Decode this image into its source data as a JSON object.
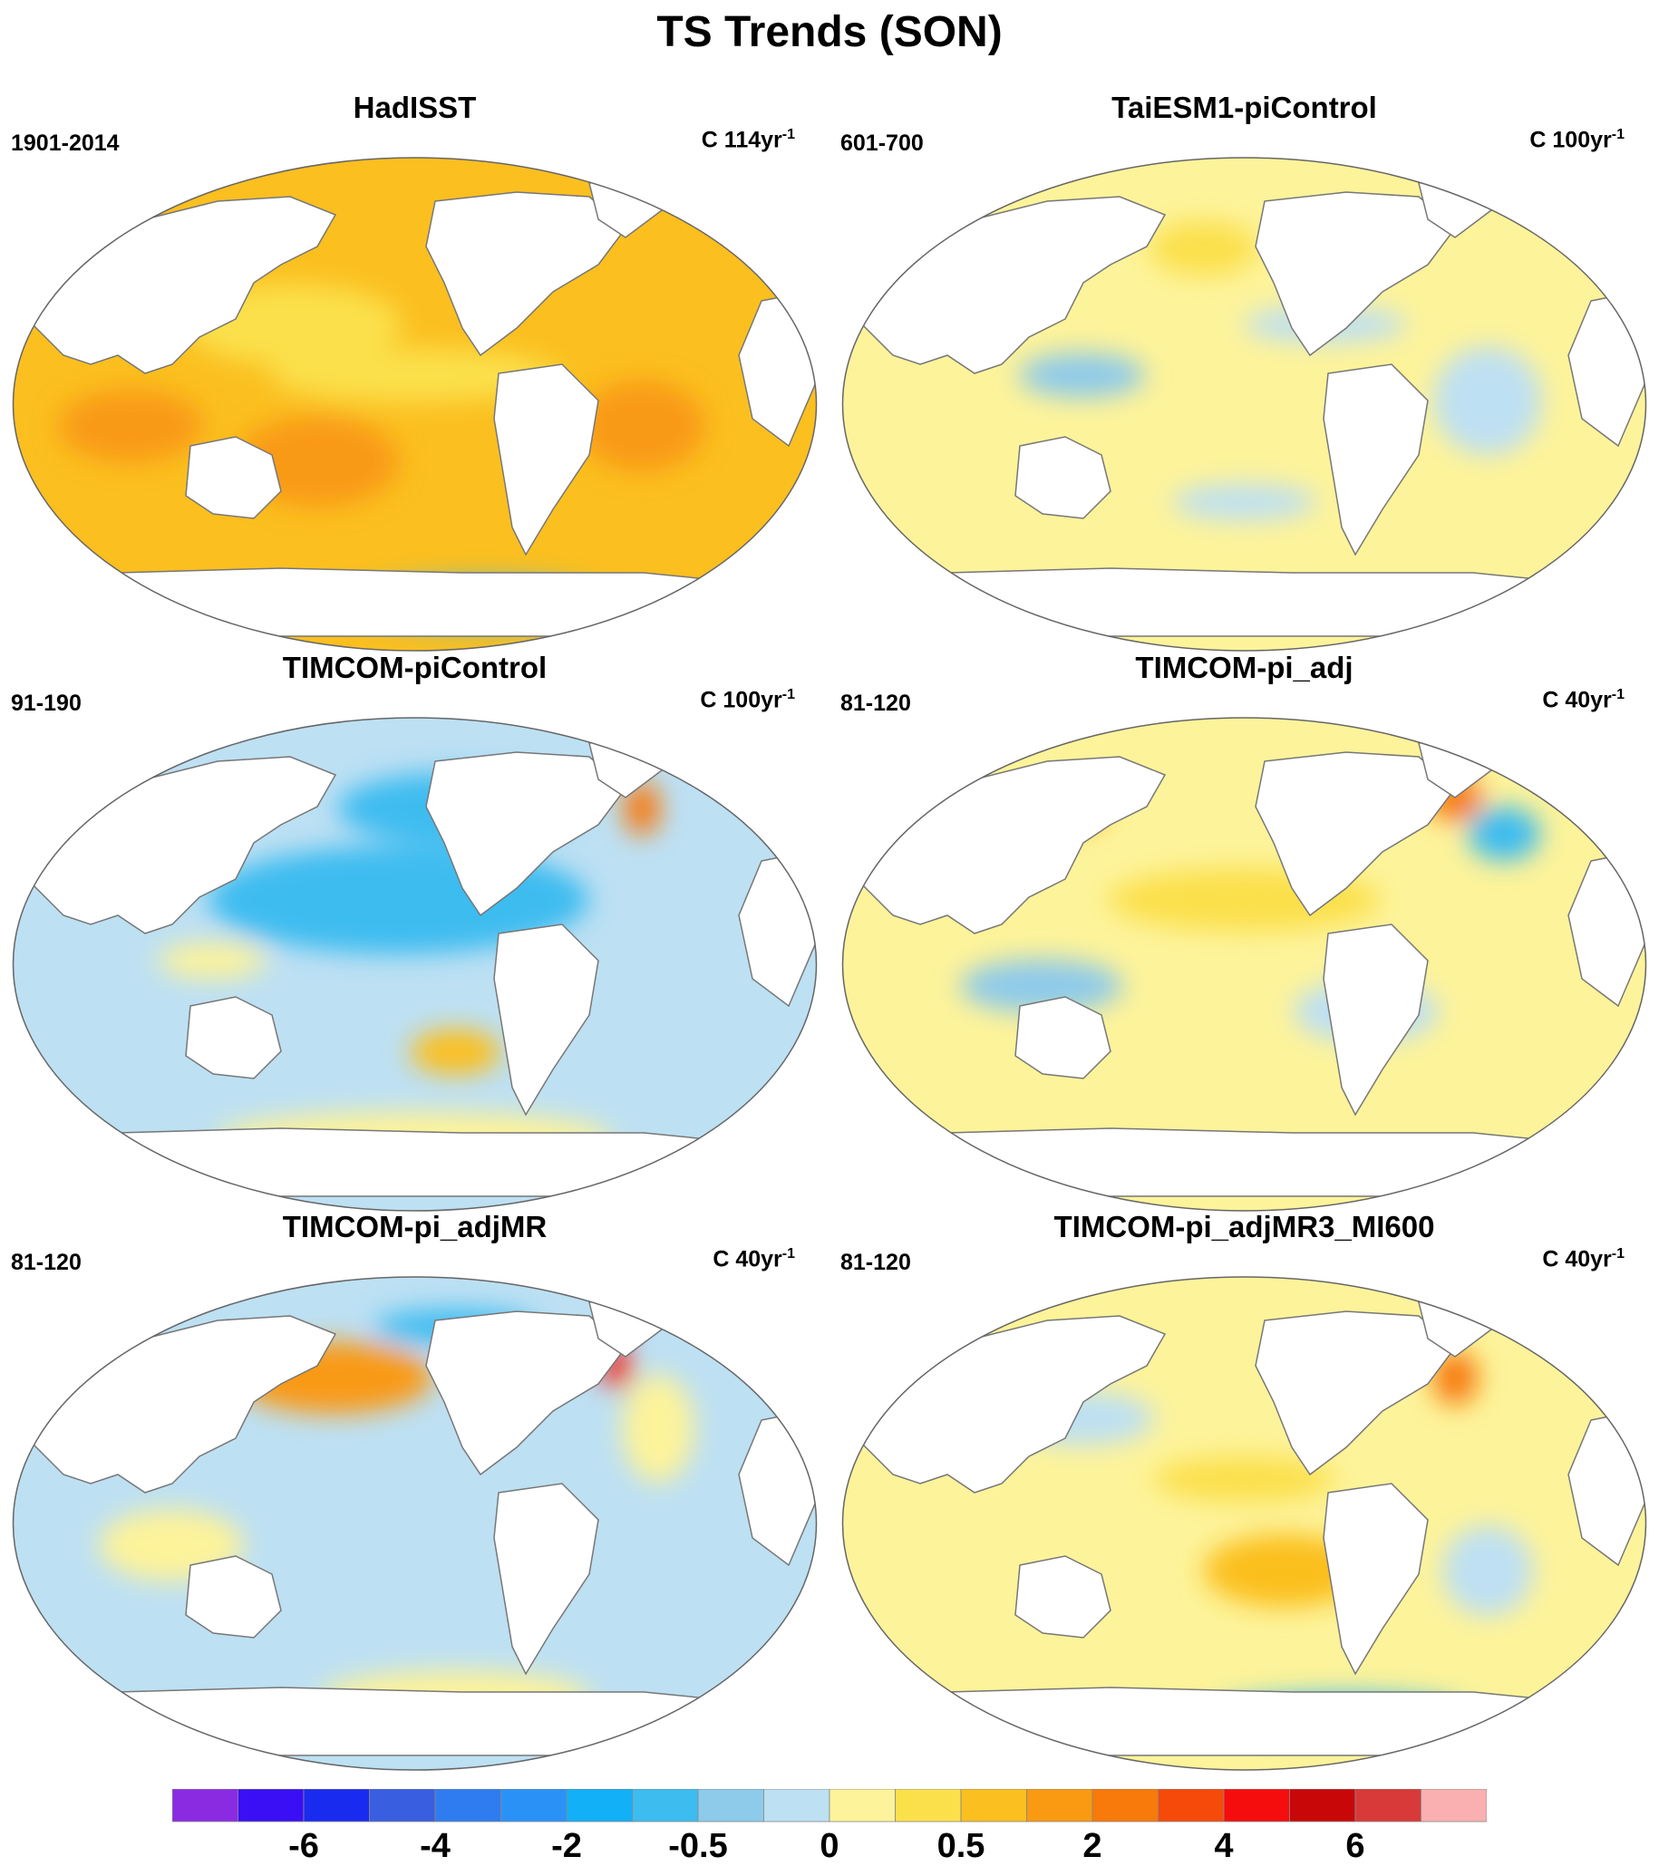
{
  "title": "TS Trends (SON)",
  "panels": [
    {
      "title": "HadISST",
      "period": "1901-2014",
      "units": "C 114yr",
      "units_exp": "-1",
      "pattern": "warm"
    },
    {
      "title": "TaiESM1-piControl",
      "period": "601-700",
      "units": "C 100yr",
      "units_exp": "-1",
      "pattern": "mixed"
    },
    {
      "title": "TIMCOM-piControl",
      "period": "91-190",
      "units": "C 100yr",
      "units_exp": "-1",
      "pattern": "cool"
    },
    {
      "title": "TIMCOM-pi_adj",
      "period": "81-120",
      "units": "C 40yr",
      "units_exp": "-1",
      "pattern": "mixed2"
    },
    {
      "title": "TIMCOM-pi_adjMR",
      "period": "81-120",
      "units": "C 40yr",
      "units_exp": "-1",
      "pattern": "mixed3"
    },
    {
      "title": "TIMCOM-pi_adjMR3_MI600",
      "period": "81-120",
      "units": "C 40yr",
      "units_exp": "-1",
      "pattern": "mixed4"
    }
  ],
  "colorbar": {
    "colors": [
      "#8a2be2",
      "#3a0ff5",
      "#1a2bf0",
      "#3a5ee0",
      "#2f7cf0",
      "#2a92f7",
      "#12b0f7",
      "#3dbcf0",
      "#8ecaea",
      "#bde0f3",
      "#fdf39a",
      "#fbe04c",
      "#fbbf1f",
      "#f99a12",
      "#f77a0a",
      "#f64a0a",
      "#f50d0d",
      "#c80808",
      "#d83a3a",
      "#fab0b0"
    ],
    "labels": [
      "-6",
      "-4",
      "-2",
      "-0.5",
      "0",
      "0.5",
      "2",
      "4",
      "6"
    ],
    "label_boundaries": [
      2,
      4,
      6,
      8,
      10,
      12,
      14,
      16,
      18
    ]
  }
}
